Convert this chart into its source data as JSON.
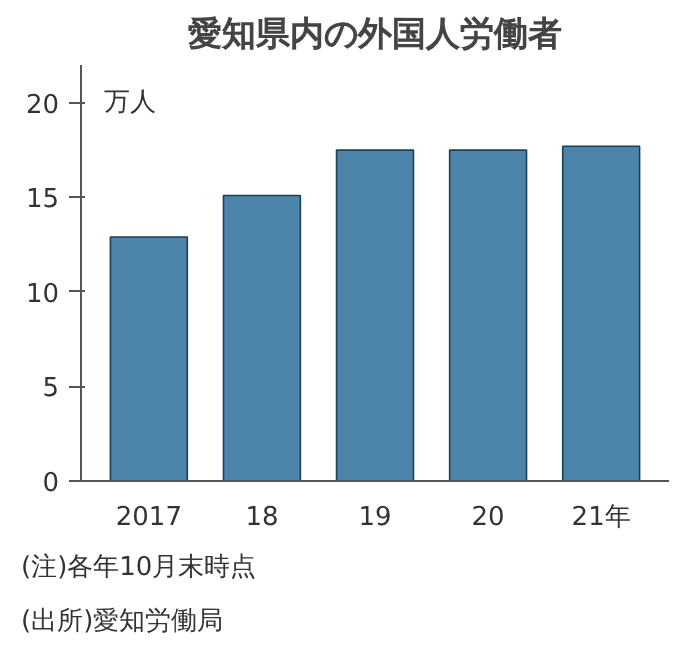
{
  "chart_data": {
    "type": "bar",
    "title": "愛知県内の外国人労働者",
    "ylabel": "万人",
    "categories": [
      "2017",
      "18",
      "19",
      "20",
      "21年"
    ],
    "values": [
      12.9,
      15.1,
      17.5,
      17.5,
      17.7
    ],
    "color": "#4d84aa",
    "ylim": [
      0,
      22
    ],
    "yticks": [
      0,
      5,
      10,
      15,
      20
    ],
    "grid": false,
    "annotations": [
      "(注)各年10月末時点",
      "(出所)愛知労働局"
    ]
  }
}
